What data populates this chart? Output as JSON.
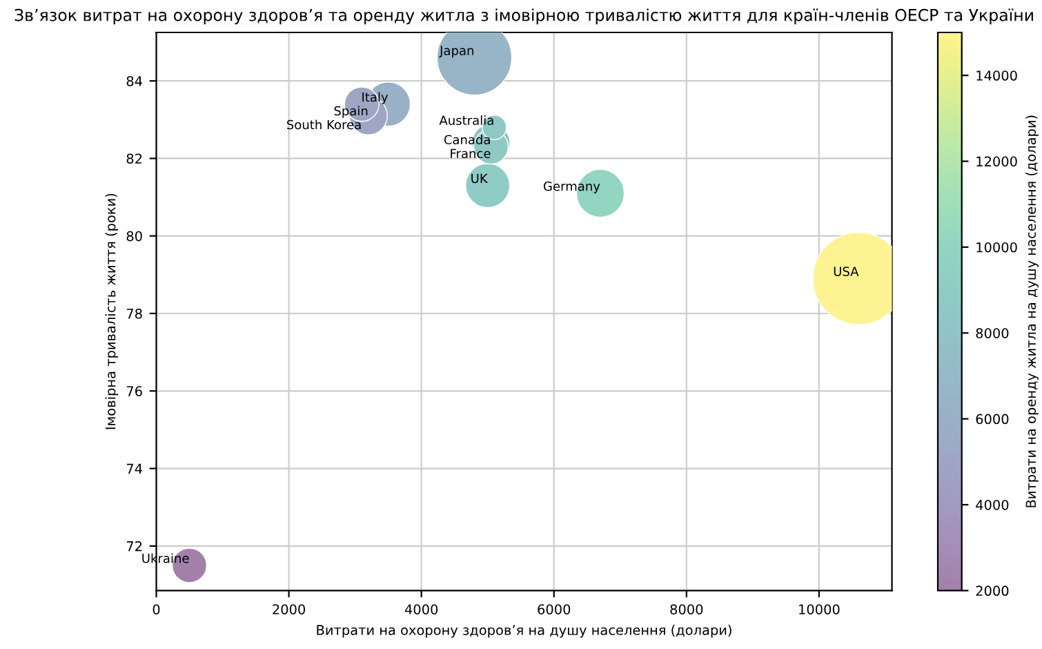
{
  "chart_data": {
    "type": "bubble",
    "title": "Зв’язок витрат на охорону здоров’я та оренду житла з імовірною тривалістю життя для країн-членів ОЕСР та України",
    "xlabel": "Витрати на охорону здоров’я на душу населення (долари)",
    "ylabel": "Імовірна тривалість життя (роки)",
    "clabel": "Витрати на оренду житла на душу населення (долари)",
    "x": [
      10600,
      4800,
      6700,
      5000,
      5050,
      5100,
      5050,
      3500,
      3200,
      3100,
      500
    ],
    "values": [
      78.9,
      84.6,
      81.1,
      81.3,
      82.3,
      82.8,
      82.4,
      83.4,
      83.1,
      83.4,
      71.5
    ],
    "sizes": [
      1,
      0.66,
      0.27,
      0.23,
      0.14,
      0.07,
      0.17,
      0.23,
      0.17,
      0.14,
      0.14
    ],
    "cvalues": [
      15000,
      6500,
      10000,
      9000,
      8500,
      8500,
      8000,
      6000,
      5000,
      5000,
      2000
    ],
    "annotations": [
      {
        "text": "USA",
        "x": 10600,
        "y": 78.9
      },
      {
        "text": "Japan",
        "x": 4800,
        "y": 84.6
      },
      {
        "text": "Germany",
        "x": 6700,
        "y": 81.1
      },
      {
        "text": "UK",
        "x": 5000,
        "y": 81.3
      },
      {
        "text": "Canada",
        "x": 5050,
        "y": 82.3
      },
      {
        "text": "Australia",
        "x": 5100,
        "y": 82.8
      },
      {
        "text": "France",
        "x": 5050,
        "y": 82.4
      },
      {
        "text": "Italy",
        "x": 3500,
        "y": 83.4
      },
      {
        "text": "Spain",
        "x": 3200,
        "y": 83.1
      },
      {
        "text": "South Korea",
        "x": 3100,
        "y": 83.4
      },
      {
        "text": "Ukraine",
        "x": 500,
        "y": 71.5
      }
    ],
    "xlim": [
      0,
      11100
    ],
    "ylim": [
      70.85,
      85.25
    ],
    "xticks": [
      0,
      2000,
      4000,
      6000,
      8000,
      10000
    ],
    "yticks": [
      72,
      74,
      76,
      78,
      80,
      82,
      84
    ],
    "clim": [
      2000,
      15000
    ],
    "cticks": [
      2000,
      4000,
      6000,
      8000,
      10000,
      12000,
      14000
    ],
    "grid": true
  }
}
